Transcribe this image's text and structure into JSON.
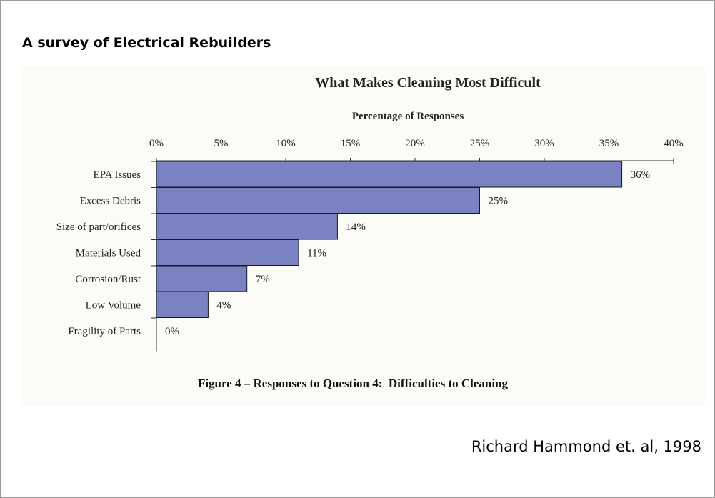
{
  "page": {
    "heading": "A survey of Electrical Rebuilders",
    "citation": "Richard Hammond et. al, 1998"
  },
  "chart_data": {
    "type": "bar",
    "orientation": "horizontal",
    "title": "What Makes Cleaning Most Difficult",
    "xlabel": "Percentage of Responses",
    "ylabel": "",
    "xlim": [
      0,
      40
    ],
    "x_ticks": [
      0,
      5,
      10,
      15,
      20,
      25,
      30,
      35,
      40
    ],
    "x_tick_labels": [
      "0%",
      "5%",
      "10%",
      "15%",
      "20%",
      "25%",
      "30%",
      "35%",
      "40%"
    ],
    "categories": [
      "EPA Issues",
      "Excess Debris",
      "Size of part/orifices",
      "Materials Used",
      "Corrosion/Rust",
      "Low Volume",
      "Fragility of Parts"
    ],
    "values": [
      36,
      25,
      14,
      11,
      7,
      4,
      0
    ],
    "data_labels": [
      "36%",
      "25%",
      "14%",
      "11%",
      "7%",
      "4%",
      "0%"
    ],
    "bar_color": "#7b82c1",
    "axis_position": "top",
    "grid": false,
    "legend": "none",
    "caption": "Figure 4 – Responses to Question 4:  Difficulties to Cleaning"
  }
}
